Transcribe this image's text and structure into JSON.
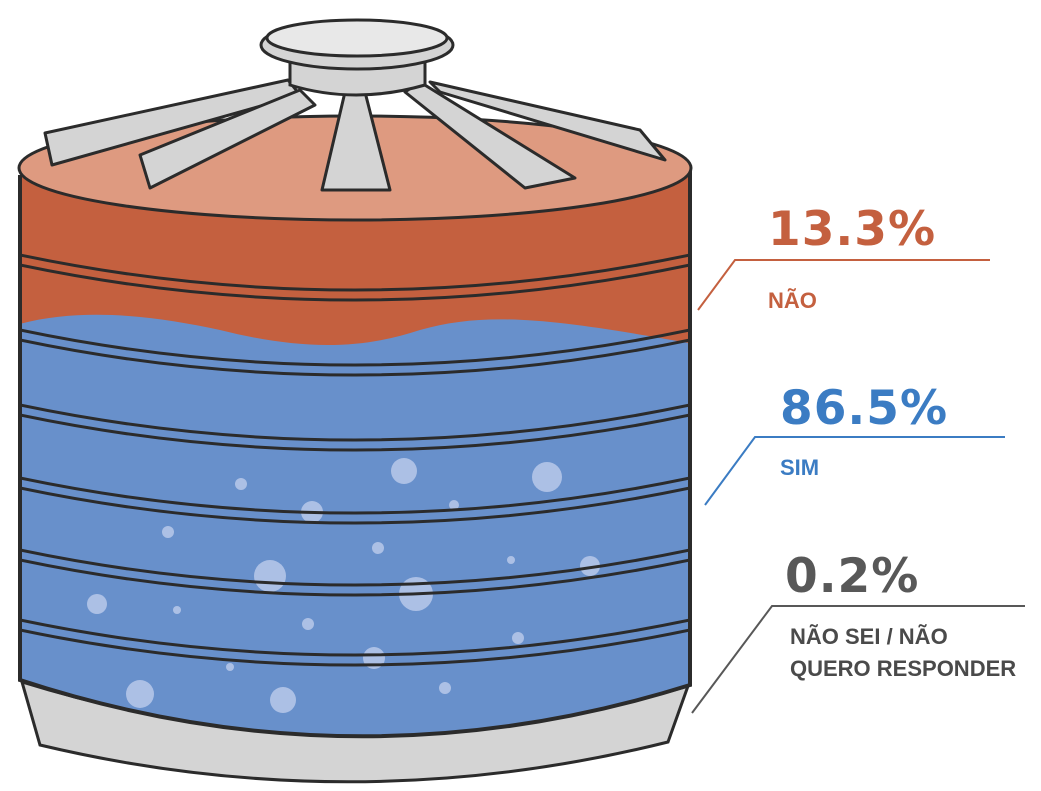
{
  "chart_data": {
    "type": "pie",
    "title": "",
    "categories": [
      "NÃO",
      "SIM",
      "NÃO SEI / NÃO QUERO RESPONDER"
    ],
    "values": [
      13.3,
      86.5,
      0.2
    ],
    "unit": "%",
    "labels": [
      {
        "value_text": "13.3%",
        "lines": [
          "NÃO"
        ]
      },
      {
        "value_text": "86.5%",
        "lines": [
          "SIM"
        ]
      },
      {
        "value_text": "0.2%",
        "lines": [
          "NÃO SEI / NÃO",
          "QUERO RESPONDER"
        ]
      }
    ],
    "legend": "right",
    "grid": false
  },
  "colors": {
    "nao": "#c4603f",
    "sim": "#6890cb",
    "nao_sei": "#585858",
    "roof": "#de9a80",
    "tank_gray": "#d2d2d2",
    "outline": "#2b2b2b",
    "bubble": "#b9c9ea",
    "label_sim": "#3b7cc3"
  },
  "icons": {
    "tank": "water-tank-icon"
  }
}
